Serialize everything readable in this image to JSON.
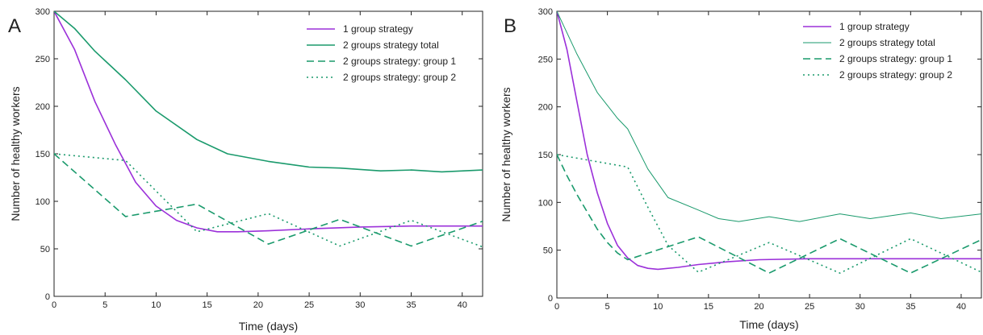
{
  "chart_data": [
    {
      "type": "line",
      "panel_label": "A",
      "xlabel": "Time (days)",
      "ylabel": "Number of healthy workers",
      "xlim": [
        0,
        42
      ],
      "ylim": [
        0,
        300
      ],
      "xticks": [
        0,
        5,
        10,
        15,
        20,
        25,
        30,
        35,
        40
      ],
      "yticks": [
        0,
        50,
        100,
        150,
        200,
        250,
        300
      ],
      "legend_position": "top-right",
      "series": [
        {
          "name": "1 group strategy",
          "color": "#9b30d9",
          "dash": "solid",
          "x": [
            0,
            2,
            4,
            6,
            8,
            10,
            12,
            14,
            16,
            18,
            21,
            25,
            30,
            35,
            42
          ],
          "y": [
            300,
            260,
            205,
            160,
            120,
            95,
            80,
            72,
            68,
            68,
            69,
            71,
            73,
            74,
            74
          ]
        },
        {
          "name": "2 groups strategy total",
          "color": "#1a9a6c",
          "dash": "solid",
          "x": [
            0,
            2,
            4,
            7,
            10,
            14,
            17,
            21,
            25,
            28,
            32,
            35,
            38,
            42
          ],
          "y": [
            300,
            282,
            258,
            228,
            195,
            165,
            150,
            142,
            136,
            135,
            132,
            133,
            131,
            133
          ]
        },
        {
          "name": "2 groups strategy: group 1",
          "color": "#1a9a6c",
          "dash": "dashed",
          "x": [
            0,
            7,
            14,
            21,
            28,
            35,
            42
          ],
          "y": [
            150,
            84,
            97,
            55,
            81,
            53,
            79
          ]
        },
        {
          "name": "2 groups strategy: group 2",
          "color": "#1a9a6c",
          "dash": "dotted",
          "x": [
            0,
            7,
            14,
            21,
            28,
            35,
            42
          ],
          "y": [
            150,
            143,
            68,
            87,
            53,
            80,
            52
          ]
        }
      ]
    },
    {
      "type": "line",
      "panel_label": "B",
      "xlabel": "Time (days)",
      "ylabel": "Number of healthy workers",
      "xlim": [
        0,
        42
      ],
      "ylim": [
        0,
        300
      ],
      "xticks": [
        0,
        5,
        10,
        15,
        20,
        25,
        30,
        35,
        40
      ],
      "yticks": [
        0,
        50,
        100,
        150,
        200,
        250,
        300
      ],
      "legend_position": "top-right",
      "series": [
        {
          "name": "1 group strategy",
          "color": "#9b30d9",
          "dash": "solid",
          "x": [
            0,
            1,
            2,
            3,
            4,
            5,
            6,
            7,
            8,
            9,
            10,
            12,
            14,
            17,
            20,
            25,
            30,
            35,
            42
          ],
          "y": [
            300,
            260,
            205,
            150,
            110,
            78,
            55,
            42,
            34,
            31,
            30,
            32,
            35,
            38,
            40,
            41,
            41,
            41,
            41
          ]
        },
        {
          "name": "2 groups strategy total",
          "color": "#1a9a6c",
          "dash": "solid",
          "x": [
            0,
            2,
            4,
            6,
            7,
            9,
            11,
            14,
            16,
            18,
            21,
            24,
            28,
            31,
            35,
            38,
            42
          ],
          "y": [
            300,
            255,
            215,
            188,
            177,
            135,
            105,
            92,
            83,
            80,
            85,
            80,
            88,
            83,
            89,
            83,
            88
          ]
        },
        {
          "name": "2 groups strategy: group 1",
          "color": "#1a9a6c",
          "dash": "dashed",
          "x": [
            0,
            1,
            2,
            3,
            4,
            5,
            6,
            7,
            14,
            21,
            28,
            35,
            42
          ],
          "y": [
            150,
            128,
            108,
            90,
            72,
            58,
            47,
            40,
            64,
            26,
            62,
            26,
            61
          ]
        },
        {
          "name": "2 groups strategy: group 2",
          "color": "#1a9a6c",
          "dash": "dotted",
          "x": [
            0,
            7,
            9,
            11,
            14,
            21,
            28,
            35,
            42
          ],
          "y": [
            150,
            137,
            95,
            55,
            27,
            58,
            26,
            62,
            27
          ]
        }
      ]
    }
  ]
}
